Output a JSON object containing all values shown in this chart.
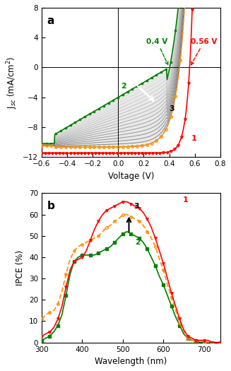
{
  "panel_a": {
    "xlim": [
      -0.6,
      0.8
    ],
    "ylim": [
      -12,
      8
    ],
    "xlabel": "Voltage (V)",
    "ylabel": "J$_{sc}$ (mA/cm$^{2}$)",
    "xticks": [
      -0.6,
      -0.4,
      -0.2,
      0.0,
      0.2,
      0.4,
      0.6,
      0.8
    ],
    "yticks": [
      -12,
      -8,
      -4,
      0,
      4,
      8
    ],
    "label": "a",
    "voc2_label": "0.4 V",
    "voc1_label": "0.56 V"
  },
  "panel_b": {
    "xlim": [
      300,
      740
    ],
    "ylim": [
      0,
      70
    ],
    "xlabel": "Wavelength (nm)",
    "ylabel": "IPCE (%)",
    "xticks": [
      300,
      400,
      500,
      600,
      700
    ],
    "yticks": [
      0,
      10,
      20,
      30,
      40,
      50,
      60,
      70
    ],
    "label": "b"
  },
  "colors": {
    "curve1": "#ff0000",
    "curve2": "#008000",
    "curve3": "#ff8c00",
    "gray_band": "#888888"
  }
}
